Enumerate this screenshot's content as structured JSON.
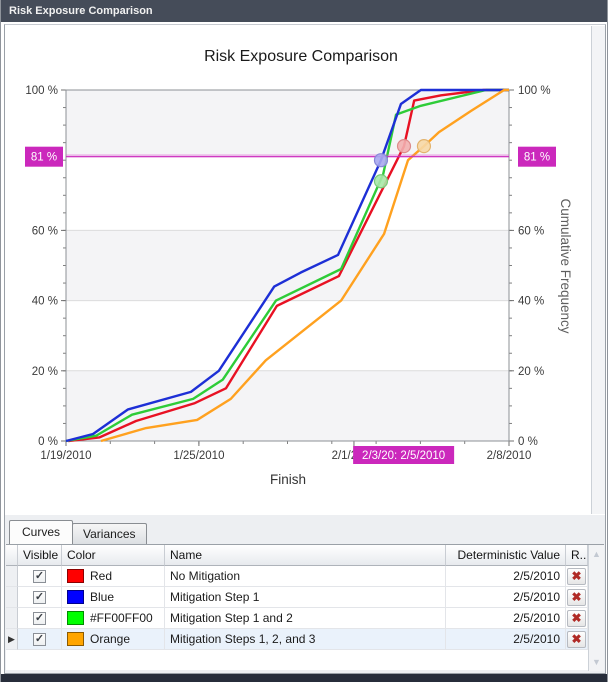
{
  "window": {
    "title": "Risk Exposure Comparison"
  },
  "chart": {
    "title": "Risk Exposure Comparison",
    "x_title": "Finish",
    "y_title": "Cumulative Frequency"
  },
  "chart_data": {
    "type": "line",
    "title": "Risk Exposure Comparison",
    "xlabel": "Finish",
    "ylabel": "Cumulative Frequency",
    "x_range": [
      "1/19/2010",
      "2/8/2010"
    ],
    "ylim": [
      0,
      100
    ],
    "x_axis": {
      "ticks": [
        {
          "f": 0.0,
          "label": "1/19/2010"
        },
        {
          "f": 0.3,
          "label": "1/25/2010"
        },
        {
          "f": 0.65,
          "label": "2/1/2010"
        },
        {
          "f": 1.0,
          "label": "2/8/2010"
        }
      ]
    },
    "y_axis": {
      "ticks": [
        {
          "pct": 0,
          "label": "0 %"
        },
        {
          "pct": 20,
          "label": "20 %"
        },
        {
          "pct": 40,
          "label": "40 %"
        },
        {
          "pct": 60,
          "label": "60 %"
        },
        {
          "pct": 100,
          "label": "100 %"
        }
      ]
    },
    "bands_pct": [
      [
        0,
        20
      ],
      [
        40,
        60
      ],
      [
        81,
        100
      ]
    ],
    "gridlines_pct": [
      20,
      40,
      60
    ],
    "crosshair": {
      "pct": 81,
      "y_label": "81 %",
      "x_f": 0.761,
      "x_label": "2/3/20: 2/5/2010",
      "color": "#cb28bc",
      "line_color": "#d94fce"
    },
    "series": [
      {
        "name": "No Mitigation",
        "color": "#e81123",
        "points": [
          [
            0.005,
            0
          ],
          [
            0.075,
            1
          ],
          [
            0.158,
            5.7
          ],
          [
            0.291,
            10.8
          ],
          [
            0.361,
            15
          ],
          [
            0.476,
            38.5
          ],
          [
            0.616,
            47
          ],
          [
            0.763,
            84
          ],
          [
            0.786,
            97
          ],
          [
            0.847,
            98.5
          ],
          [
            0.943,
            100
          ],
          [
            1,
            100
          ]
        ],
        "marker": {
          "f": 0.763,
          "pct": 84,
          "fill": "#f2b0b0",
          "stroke": "#dd8a8a"
        }
      },
      {
        "name": "Mitigation Step 1 and 2",
        "color": "#2ecc38",
        "points": [
          [
            0,
            0
          ],
          [
            0.068,
            1.5
          ],
          [
            0.149,
            7.5
          ],
          [
            0.287,
            12
          ],
          [
            0.354,
            17.5
          ],
          [
            0.474,
            40
          ],
          [
            0.621,
            49
          ],
          [
            0.716,
            76
          ],
          [
            0.745,
            93
          ],
          [
            0.801,
            95.5
          ],
          [
            0.948,
            100
          ],
          [
            1,
            100
          ]
        ],
        "marker": {
          "f": 0.711,
          "pct": 74,
          "fill": "#a9e8a9",
          "stroke": "#79cc79"
        }
      },
      {
        "name": "Mitigation Step 1",
        "color": "#1d2fd6",
        "points": [
          [
            0,
            0
          ],
          [
            0.061,
            2
          ],
          [
            0.14,
            9
          ],
          [
            0.282,
            14
          ],
          [
            0.345,
            20
          ],
          [
            0.47,
            44
          ],
          [
            0.53,
            48
          ],
          [
            0.614,
            53
          ],
          [
            0.711,
            80
          ],
          [
            0.756,
            96
          ],
          [
            0.801,
            100
          ],
          [
            1,
            100
          ]
        ],
        "marker": {
          "f": 0.711,
          "pct": 80,
          "fill": "#a9a9ef",
          "stroke": "#8787d8"
        }
      },
      {
        "name": "Mitigation Steps 1, 2, and 3",
        "color": "#ffa11f",
        "points": [
          [
            0.079,
            0
          ],
          [
            0.181,
            3.7
          ],
          [
            0.296,
            6
          ],
          [
            0.372,
            12
          ],
          [
            0.451,
            23
          ],
          [
            0.621,
            40
          ],
          [
            0.718,
            59
          ],
          [
            0.772,
            80
          ],
          [
            0.808,
            84
          ],
          [
            0.842,
            88
          ],
          [
            0.914,
            94
          ],
          [
            0.989,
            100
          ],
          [
            1,
            100
          ]
        ],
        "marker": {
          "f": 0.808,
          "pct": 84,
          "fill": "#f7d8a6",
          "stroke": "#e2b36d"
        }
      }
    ]
  },
  "tabs": [
    {
      "label": "Curves",
      "selected": true
    },
    {
      "label": "Variances",
      "selected": false
    }
  ],
  "table": {
    "columns": {
      "visible": "Visible",
      "color": "Color",
      "name": "Name",
      "deterministic": "Deterministic Value",
      "remove": "R..."
    },
    "row_indicator": "▶",
    "check_glyph": "✓",
    "delete_glyph": "✖",
    "scroll_up_glyph": "▲",
    "scroll_down_glyph": "▼",
    "rows": [
      {
        "visible": true,
        "color_name": "Red",
        "color": "#ff0000",
        "name": "No Mitigation",
        "deterministic": "2/5/2010",
        "selected": false
      },
      {
        "visible": true,
        "color_name": "Blue",
        "color": "#0000ff",
        "name": "Mitigation Step 1",
        "deterministic": "2/5/2010",
        "selected": false
      },
      {
        "visible": true,
        "color_name": "#FF00FF00",
        "color": "#00ff00",
        "name": "Mitigation Step 1 and 2",
        "deterministic": "2/5/2010",
        "selected": false
      },
      {
        "visible": true,
        "color_name": "Orange",
        "color": "#ffa500",
        "name": "Mitigation Steps 1, 2, and 3",
        "deterministic": "2/5/2010",
        "selected": true
      }
    ]
  }
}
